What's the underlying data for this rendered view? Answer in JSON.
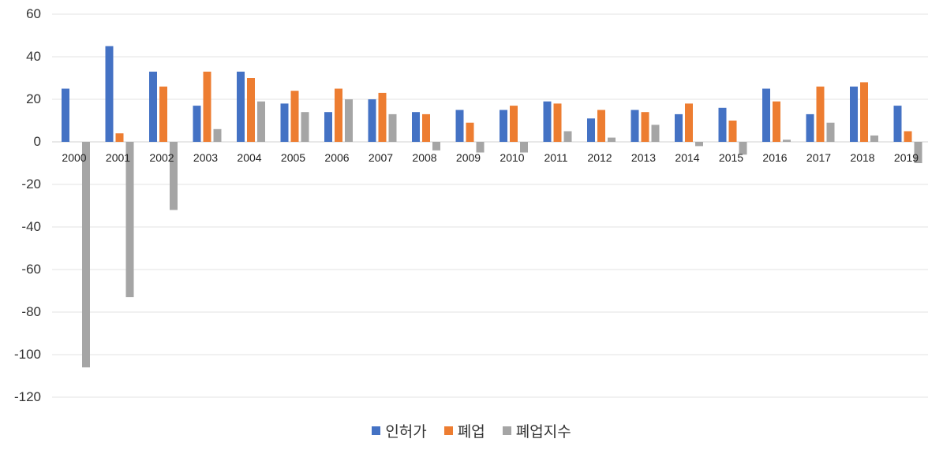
{
  "chart_data": {
    "type": "bar",
    "title": "",
    "xlabel": "",
    "ylabel": "",
    "ylim": [
      -120,
      60
    ],
    "yticks": [
      60,
      40,
      20,
      0,
      -20,
      -40,
      -60,
      -80,
      -100,
      -120
    ],
    "grid": true,
    "legend_position": "bottom",
    "categories": [
      "2000",
      "2001",
      "2002",
      "2003",
      "2004",
      "2005",
      "2006",
      "2007",
      "2008",
      "2009",
      "2010",
      "2011",
      "2012",
      "2013",
      "2014",
      "2015",
      "2016",
      "2017",
      "2018",
      "2019"
    ],
    "series": [
      {
        "name": "인허가",
        "color": "#4472C4",
        "values": [
          25,
          45,
          33,
          17,
          33,
          18,
          14,
          20,
          14,
          15,
          15,
          19,
          11,
          15,
          13,
          16,
          25,
          13,
          26,
          17
        ]
      },
      {
        "name": "폐업",
        "color": "#ED7D31",
        "values": [
          0,
          4,
          26,
          33,
          30,
          24,
          25,
          23,
          13,
          9,
          17,
          18,
          15,
          14,
          18,
          10,
          19,
          26,
          28,
          5
        ]
      },
      {
        "name": "폐업지수",
        "color": "#A5A5A5",
        "values": [
          -106,
          -73,
          -32,
          6,
          19,
          14,
          20,
          13,
          -4,
          -5,
          -5,
          5,
          2,
          8,
          -2,
          -6,
          1,
          9,
          3,
          -10
        ]
      }
    ]
  }
}
